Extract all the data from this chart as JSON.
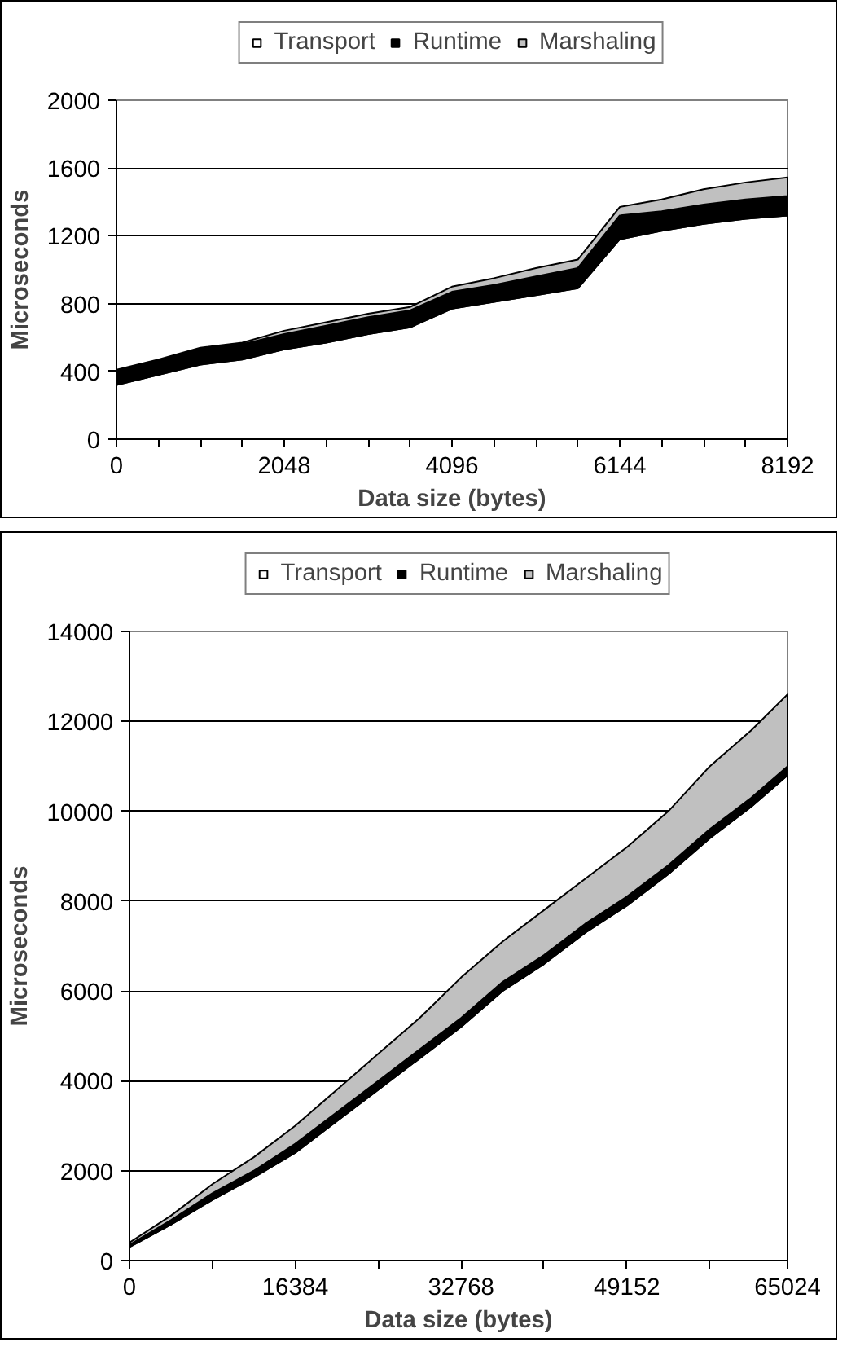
{
  "chart_data": [
    {
      "type": "area",
      "stacked": true,
      "xlabel": "Data size (bytes)",
      "ylabel": "Microseconds",
      "legend": "top",
      "grid": "y",
      "x": [
        0,
        512,
        1024,
        1536,
        2048,
        2560,
        3072,
        3584,
        4096,
        4608,
        5120,
        5632,
        6144,
        6656,
        7168,
        7680,
        8192
      ],
      "xlim": [
        0,
        8192
      ],
      "ylim": [
        0,
        2000
      ],
      "xticks": [
        0,
        {
          "value": 512,
          "label": null
        },
        {
          "value": 1024,
          "label": null
        },
        {
          "value": 1536,
          "label": null
        },
        2048,
        {
          "value": 2560,
          "label": null
        },
        {
          "value": 3072,
          "label": null
        },
        {
          "value": 3584,
          "label": null
        },
        4096,
        {
          "value": 4608,
          "label": null
        },
        {
          "value": 5120,
          "label": null
        },
        {
          "value": 5632,
          "label": null
        },
        6144,
        {
          "value": 6656,
          "label": null
        },
        {
          "value": 7168,
          "label": null
        },
        {
          "value": 7680,
          "label": null
        },
        8192
      ],
      "yticks": [
        0,
        400,
        800,
        1200,
        1600,
        2000
      ],
      "series": [
        {
          "name": "Transport",
          "color": "#ffffff",
          "values": [
            320,
            380,
            440,
            470,
            530,
            570,
            620,
            660,
            770,
            810,
            850,
            890,
            1180,
            1230,
            1270,
            1300,
            1320
          ]
        },
        {
          "name": "Runtime",
          "color": "#000000",
          "values": [
            80,
            80,
            90,
            90,
            90,
            100,
            100,
            100,
            100,
            100,
            110,
            120,
            140,
            115,
            115,
            115,
            115
          ]
        },
        {
          "name": "Marshaling",
          "color": "#c0c0c0",
          "values": [
            10,
            10,
            10,
            10,
            20,
            20,
            20,
            20,
            30,
            40,
            50,
            50,
            50,
            70,
            90,
            100,
            110
          ]
        }
      ]
    },
    {
      "type": "area",
      "stacked": true,
      "xlabel": "Data size (bytes)",
      "ylabel": "Microseconds",
      "legend": "top",
      "grid": "y",
      "x": [
        0,
        4096,
        8192,
        12288,
        16384,
        20480,
        24576,
        28672,
        32768,
        36864,
        40960,
        45056,
        49152,
        53248,
        57344,
        61440,
        65024
      ],
      "xlim": [
        0,
        65024
      ],
      "ylim": [
        0,
        14000
      ],
      "xticks": [
        0,
        {
          "value": 8192,
          "label": null
        },
        16384,
        {
          "value": 24576,
          "label": null
        },
        32768,
        {
          "value": 40960,
          "label": null
        },
        49152,
        {
          "value": 57344,
          "label": null
        },
        65024
      ],
      "yticks": [
        0,
        2000,
        4000,
        6000,
        8000,
        10000,
        12000,
        14000
      ],
      "series": [
        {
          "name": "Transport",
          "color": "#ffffff",
          "values": [
            300,
            800,
            1350,
            1850,
            2400,
            3100,
            3800,
            4500,
            5200,
            6000,
            6600,
            7300,
            7900,
            8600,
            9400,
            10100,
            10800
          ]
        },
        {
          "name": "Runtime",
          "color": "#000000",
          "values": [
            50,
            100,
            150,
            150,
            200,
            200,
            200,
            200,
            200,
            200,
            200,
            200,
            200,
            200,
            200,
            200,
            200
          ]
        },
        {
          "name": "Marshaling",
          "color": "#c0c0c0",
          "values": [
            50,
            100,
            200,
            300,
            400,
            500,
            600,
            700,
            900,
            900,
            1000,
            1000,
            1100,
            1200,
            1400,
            1500,
            1600
          ]
        }
      ]
    }
  ]
}
